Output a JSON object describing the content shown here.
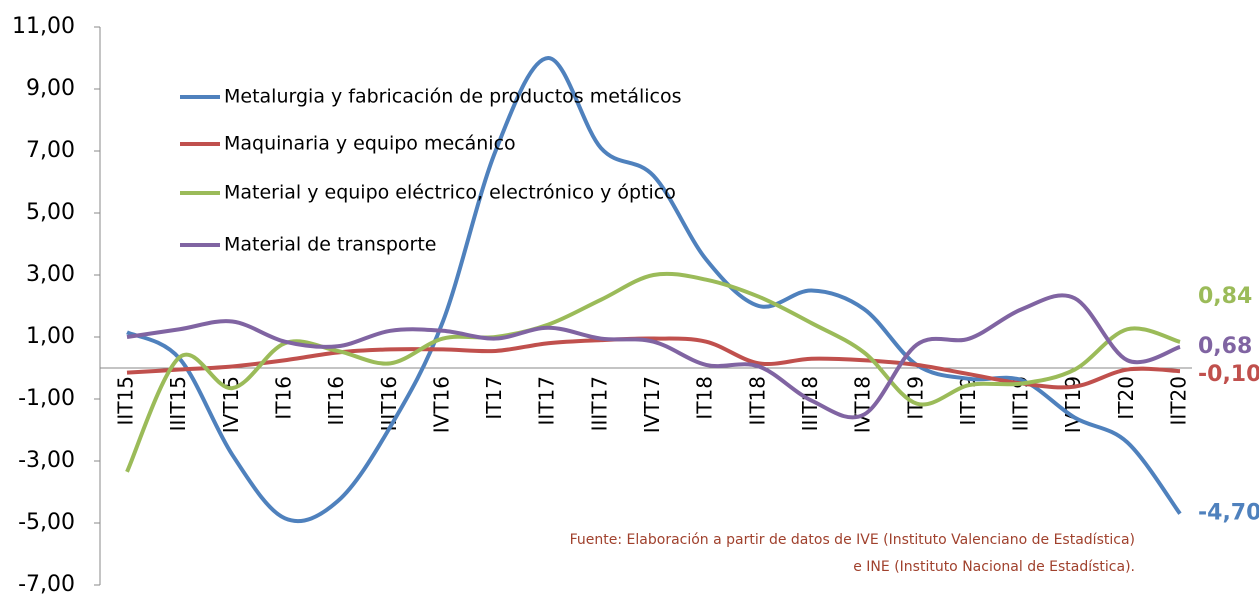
{
  "chart_data": {
    "type": "line",
    "categories": [
      "IIT15",
      "IIIT15",
      "IVT15",
      "IT16",
      "IIT16",
      "IIIT16",
      "IVT16",
      "IT17",
      "IIT17",
      "IIIT17",
      "IVT17",
      "IT18",
      "IIT18",
      "IIIT18",
      "IVT18",
      "IT19",
      "IIT19",
      "IIIT19",
      "IVT19",
      "IT20",
      "IIT20"
    ],
    "series": [
      {
        "name": "Metalurgia y fabricación de productos metálicos",
        "color": "#4f81bd",
        "values": [
          1.15,
          0.3,
          -2.8,
          -4.85,
          -4.3,
          -1.9,
          1.5,
          7.0,
          10.0,
          7.1,
          6.2,
          3.5,
          2.0,
          2.5,
          1.9,
          0.1,
          -0.35,
          -0.4,
          -1.6,
          -2.4,
          -4.7
        ],
        "value_labels": [
          null,
          null,
          null,
          null,
          null,
          null,
          null,
          null,
          null,
          null,
          null,
          null,
          null,
          null,
          null,
          null,
          null,
          null,
          null,
          null,
          "-4,70"
        ]
      },
      {
        "name": "Maquinaria y equipo mecánico",
        "color": "#c0504d",
        "values": [
          -0.15,
          -0.05,
          0.05,
          0.25,
          0.5,
          0.6,
          0.6,
          0.55,
          0.8,
          0.9,
          0.95,
          0.85,
          0.15,
          0.3,
          0.25,
          0.1,
          -0.2,
          -0.5,
          -0.6,
          -0.05,
          -0.1
        ],
        "value_labels": [
          null,
          null,
          null,
          null,
          null,
          null,
          null,
          null,
          null,
          null,
          null,
          null,
          null,
          null,
          null,
          null,
          null,
          null,
          null,
          null,
          "-0,10"
        ]
      },
      {
        "name": "Material y equipo eléctrico, electrónico y óptico",
        "color": "#9bbb59",
        "values": [
          -3.35,
          0.35,
          -0.65,
          0.8,
          0.55,
          0.15,
          0.95,
          1.0,
          1.4,
          2.2,
          3.0,
          2.85,
          2.3,
          1.45,
          0.5,
          -1.15,
          -0.55,
          -0.5,
          -0.05,
          1.25,
          0.84
        ],
        "value_labels": [
          null,
          null,
          null,
          null,
          null,
          null,
          null,
          null,
          null,
          null,
          null,
          null,
          null,
          null,
          null,
          null,
          null,
          null,
          null,
          null,
          "0,84"
        ]
      },
      {
        "name": "Material de transporte",
        "color": "#8064a2",
        "values": [
          1.0,
          1.25,
          1.5,
          0.85,
          0.7,
          1.2,
          1.2,
          0.95,
          1.3,
          0.95,
          0.85,
          0.1,
          0.05,
          -1.05,
          -1.5,
          0.75,
          0.95,
          1.9,
          2.25,
          0.25,
          0.68
        ],
        "value_labels": [
          null,
          null,
          null,
          null,
          null,
          null,
          null,
          null,
          null,
          null,
          null,
          null,
          null,
          null,
          null,
          null,
          null,
          null,
          null,
          null,
          "0,68"
        ]
      }
    ],
    "ylim": [
      -7,
      11
    ],
    "yticks": [
      {
        "value": -7,
        "label": "-7,00"
      },
      {
        "value": -5,
        "label": "-5,00"
      },
      {
        "value": -3,
        "label": "-3,00"
      },
      {
        "value": -1,
        "label": "-1,00"
      },
      {
        "value": 1,
        "label": "1,00"
      },
      {
        "value": 3,
        "label": "3,00"
      },
      {
        "value": 5,
        "label": "5,00"
      },
      {
        "value": 7,
        "label": "7,00"
      },
      {
        "value": 9,
        "label": "9,00"
      },
      {
        "value": 11,
        "label": "11,00"
      }
    ],
    "legend": "upper left",
    "annotations": [
      "Fuente: Elaboración a partir de datos de IVE (Instituto Valenciano de Estadística)",
      "e INE (Instituto Nacional de Estadística)."
    ]
  }
}
